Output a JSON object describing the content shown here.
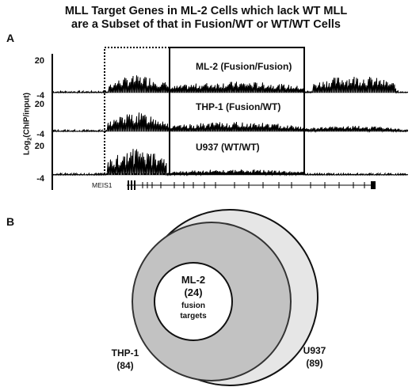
{
  "title": {
    "line1": "MLL Target Genes in ML-2 Cells which lack WT MLL",
    "line2": "are a Subset of that in Fusion/WT or WT/WT Cells"
  },
  "panel_a": {
    "letter": "A",
    "ylabel": "Log2(ChIP/input)",
    "ylabel_main": "Log",
    "ylabel_sub": "2",
    "ylabel_rest": "(ChIP/input)",
    "tracks": [
      {
        "label": "ML-2 (Fusion/Fusion)",
        "ymax": "20",
        "ymin": "-4"
      },
      {
        "label": "THP-1 (Fusion/WT)",
        "ymax": "20",
        "ymin": "-4"
      },
      {
        "label": "U937 (WT/WT)",
        "ymax": "20",
        "ymin": "-4"
      }
    ],
    "gene": "MEIS1"
  },
  "panel_b": {
    "letter": "B",
    "sets": [
      {
        "name": "ML-2",
        "count": "(24)",
        "note_line1": "fusion",
        "note_line2": "targets"
      },
      {
        "name": "THP-1",
        "count": "(84)"
      },
      {
        "name": "U937",
        "count": "(89)"
      }
    ]
  }
}
